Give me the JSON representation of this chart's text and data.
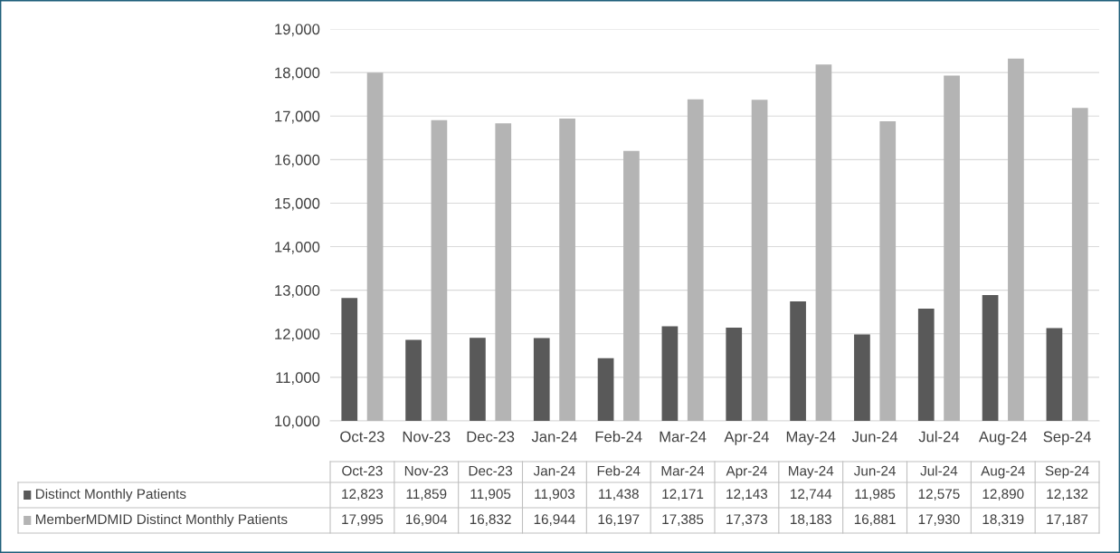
{
  "chart_data": {
    "type": "bar",
    "categories": [
      "Oct-23",
      "Nov-23",
      "Dec-23",
      "Jan-24",
      "Feb-24",
      "Mar-24",
      "Apr-24",
      "May-24",
      "Jun-24",
      "Jul-24",
      "Aug-24",
      "Sep-24"
    ],
    "series": [
      {
        "name": "Distinct Monthly Patients",
        "color": "#595959",
        "values": [
          12823,
          11859,
          11905,
          11903,
          11438,
          12171,
          12143,
          12744,
          11985,
          12575,
          12890,
          12132
        ],
        "value_labels": [
          "12,823",
          "11,859",
          "11,905",
          "11,903",
          "11,438",
          "12,171",
          "12,143",
          "12,744",
          "11,985",
          "12,575",
          "12,890",
          "12,132"
        ]
      },
      {
        "name": "MemberMDMID Distinct Monthly Patients",
        "color": "#b4b4b4",
        "values": [
          17995,
          16904,
          16832,
          16944,
          16197,
          17385,
          17373,
          18183,
          16881,
          17930,
          18319,
          17187
        ],
        "value_labels": [
          "17,995",
          "16,904",
          "16,832",
          "16,944",
          "16,197",
          "17,385",
          "17,373",
          "18,183",
          "16,881",
          "17,930",
          "18,319",
          "17,187"
        ]
      }
    ],
    "ylim": [
      10000,
      19000
    ],
    "yticks": [
      {
        "value": 10000,
        "label": "10,000"
      },
      {
        "value": 11000,
        "label": "11,000"
      },
      {
        "value": 12000,
        "label": "12,000"
      },
      {
        "value": 13000,
        "label": "13,000"
      },
      {
        "value": 14000,
        "label": "14,000"
      },
      {
        "value": 15000,
        "label": "15,000"
      },
      {
        "value": 16000,
        "label": "16,000"
      },
      {
        "value": 17000,
        "label": "17,000"
      },
      {
        "value": 18000,
        "label": "18,000"
      },
      {
        "value": 19000,
        "label": "19,000"
      }
    ],
    "grid": "y",
    "legend": "bottom"
  }
}
